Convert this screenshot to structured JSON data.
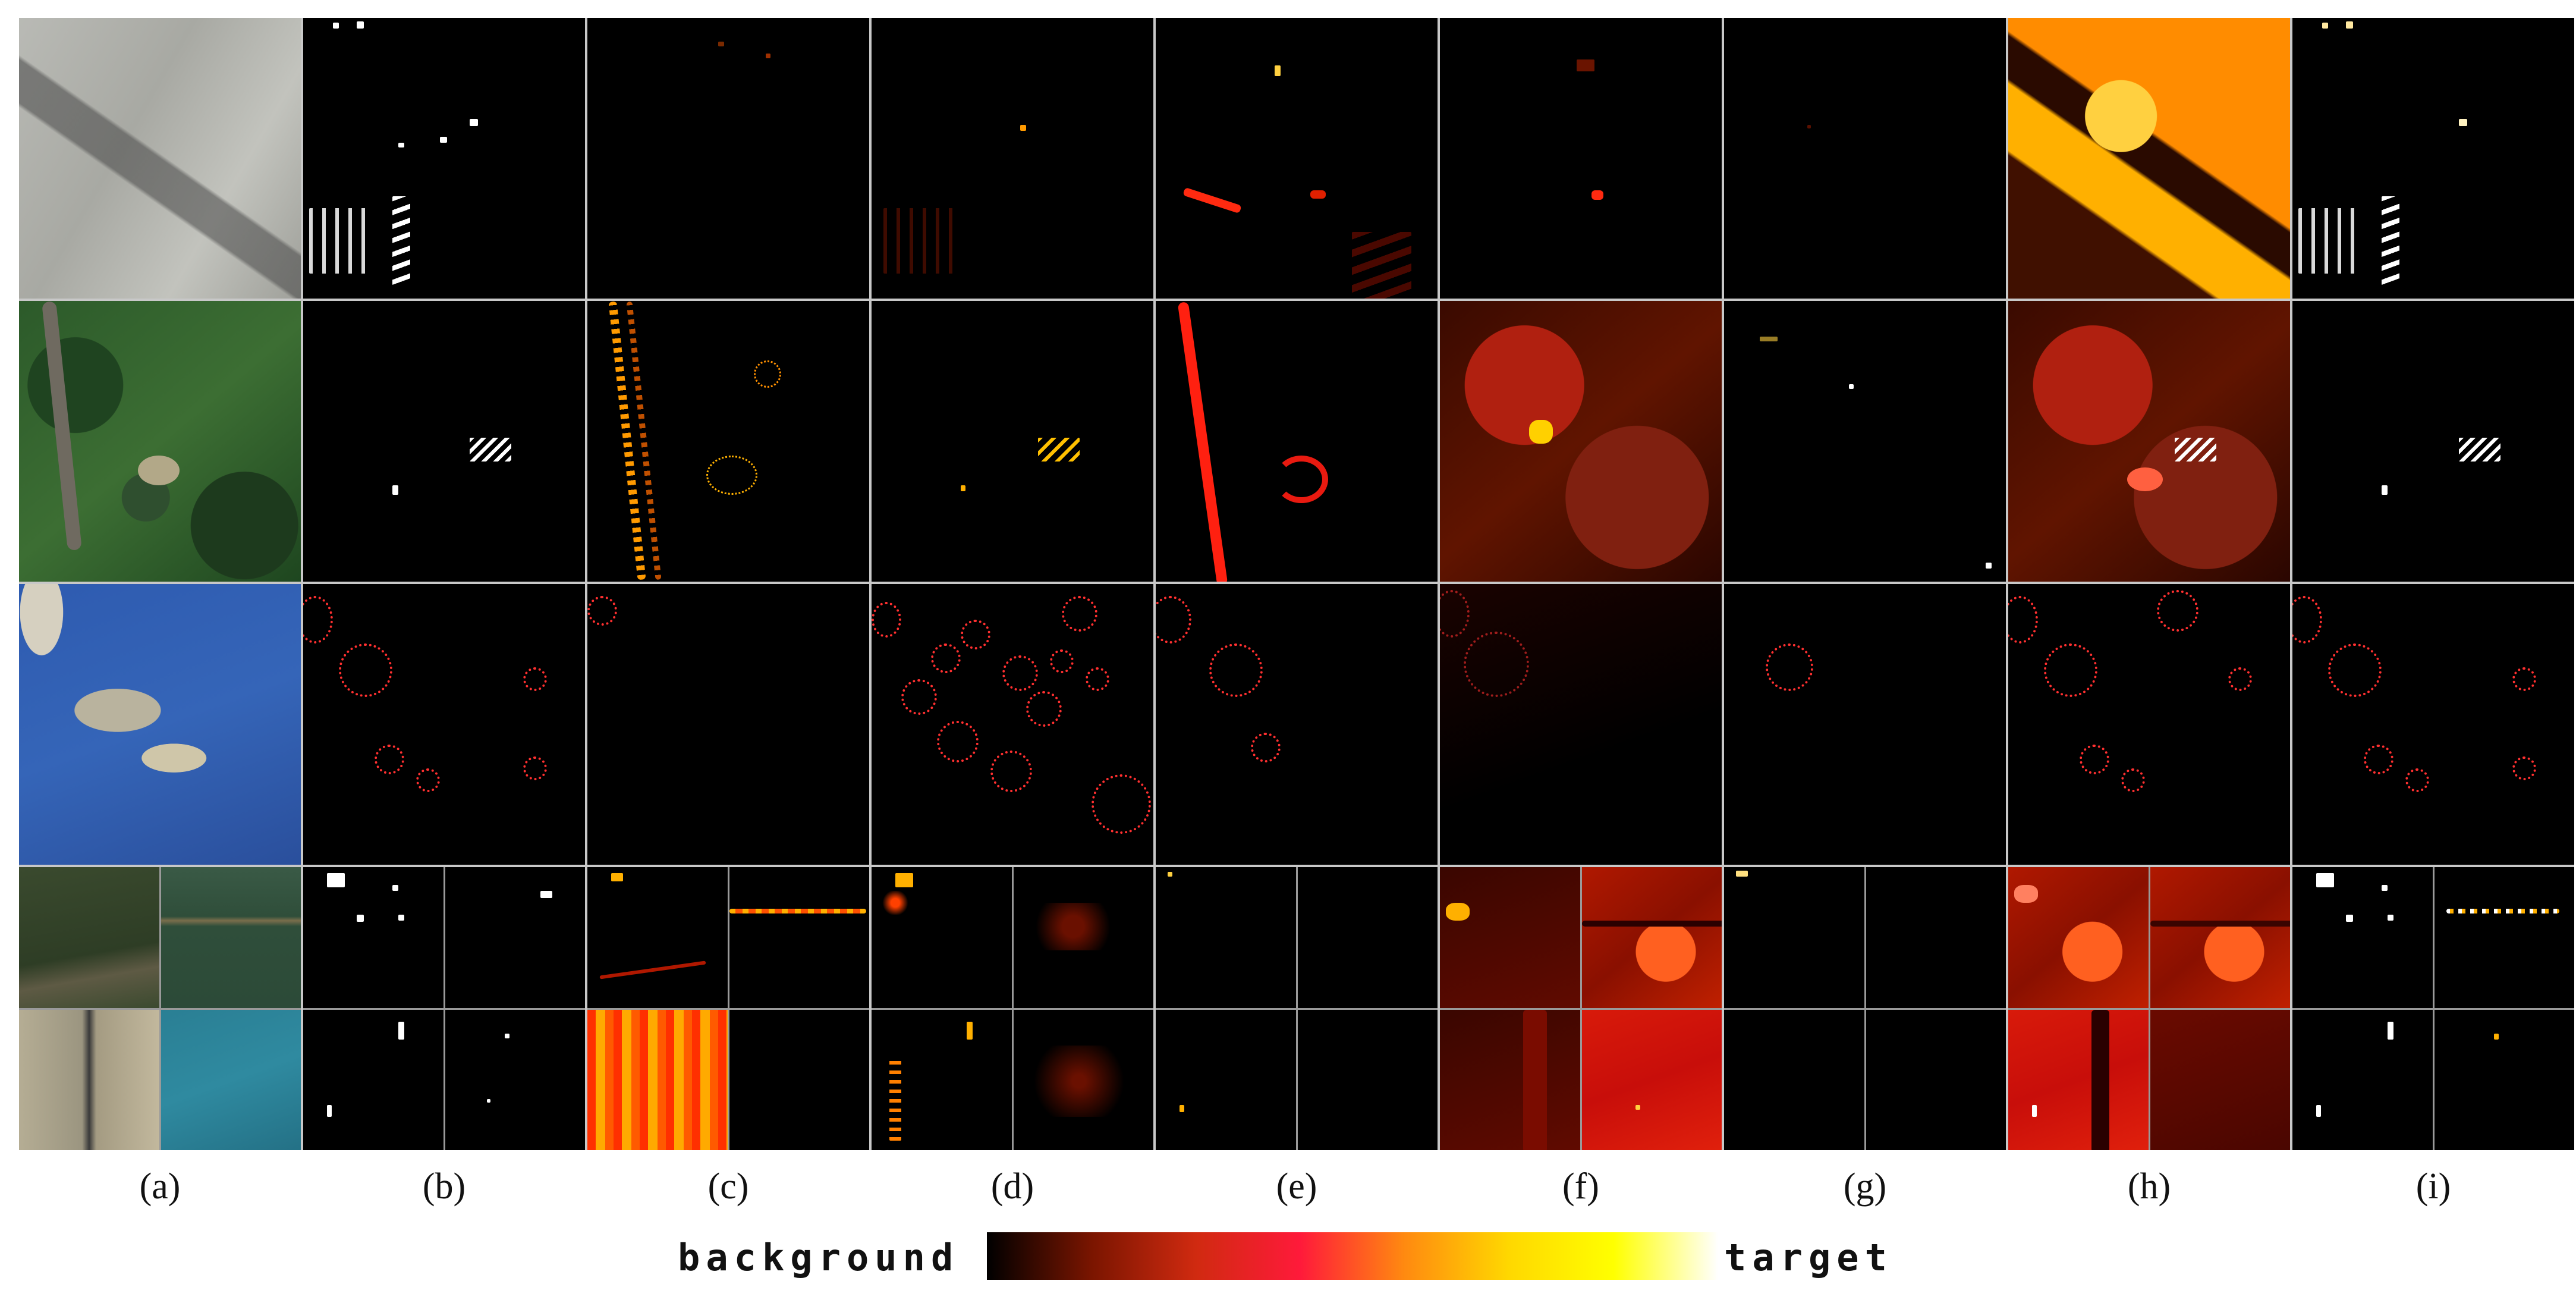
{
  "column_labels": [
    "(a)",
    "(b)",
    "(c)",
    "(d)",
    "(e)",
    "(f)",
    "(g)",
    "(h)",
    "(i)"
  ],
  "colorbar": {
    "low_label": "background",
    "high_label": "target",
    "colors": [
      "#000000",
      "#7a1500",
      "#d02a10",
      "#ff1a3a",
      "#ff8a10",
      "#ffd800",
      "#ffff00",
      "#ffffff"
    ]
  }
}
